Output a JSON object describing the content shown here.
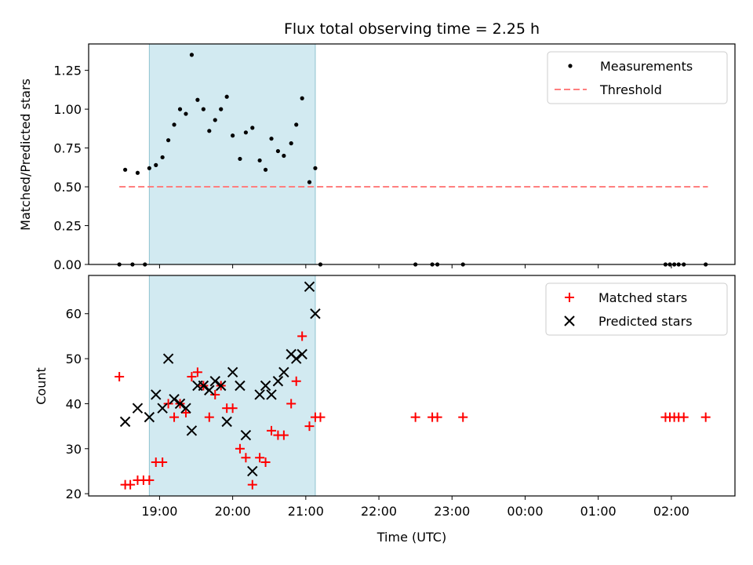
{
  "chart_data": {
    "type": "scatter",
    "title": "Flux total observing time = 2.25 h",
    "xlabel": "Time (UTC)",
    "x_unit": "hours since 19:00 UTC",
    "xlim": [
      -0.97,
      7.87
    ],
    "x_ticks": [
      0,
      1,
      2,
      3,
      4,
      5,
      6,
      7
    ],
    "x_tick_labels": [
      "19:00",
      "20:00",
      "21:00",
      "22:00",
      "23:00",
      "00:00",
      "01:00",
      "02:00"
    ],
    "observing_window": [
      -0.14,
      2.13
    ],
    "top_panel": {
      "ylabel": "Matched/Predicted stars",
      "ylim": [
        0,
        1.42
      ],
      "y_ticks": [
        0,
        0.25,
        0.5,
        0.75,
        1.0,
        1.25
      ],
      "y_tick_labels": [
        "0.00",
        "0.25",
        "0.50",
        "0.75",
        "1.00",
        "1.25"
      ],
      "threshold": {
        "name": "Threshold",
        "value": 0.5,
        "x_range": [
          -0.55,
          7.5
        ],
        "color": "#ff7f7f"
      },
      "measurements": {
        "name": "Measurements",
        "color": "#000000",
        "points": [
          [
            -0.55,
            0
          ],
          [
            -0.47,
            0.61
          ],
          [
            -0.37,
            0
          ],
          [
            -0.3,
            0.59
          ],
          [
            -0.2,
            0
          ],
          [
            -0.14,
            0.62
          ],
          [
            -0.05,
            0.64
          ],
          [
            0.04,
            0.69
          ],
          [
            0.12,
            0.8
          ],
          [
            0.2,
            0.9
          ],
          [
            0.28,
            1.0
          ],
          [
            0.36,
            0.97
          ],
          [
            0.44,
            1.35
          ],
          [
            0.52,
            1.06
          ],
          [
            0.6,
            1.0
          ],
          [
            0.68,
            0.86
          ],
          [
            0.76,
            0.93
          ],
          [
            0.84,
            1.0
          ],
          [
            0.92,
            1.08
          ],
          [
            1.0,
            0.83
          ],
          [
            1.1,
            0.68
          ],
          [
            1.18,
            0.85
          ],
          [
            1.27,
            0.88
          ],
          [
            1.37,
            0.67
          ],
          [
            1.45,
            0.61
          ],
          [
            1.53,
            0.81
          ],
          [
            1.62,
            0.73
          ],
          [
            1.7,
            0.7
          ],
          [
            1.8,
            0.78
          ],
          [
            1.87,
            0.9
          ],
          [
            1.95,
            1.07
          ],
          [
            2.05,
            0.53
          ],
          [
            2.13,
            0.62
          ],
          [
            2.2,
            0
          ],
          [
            3.5,
            0
          ],
          [
            3.73,
            0
          ],
          [
            3.8,
            0
          ],
          [
            4.15,
            0
          ],
          [
            6.92,
            0
          ],
          [
            6.98,
            0
          ],
          [
            7.04,
            0
          ],
          [
            7.1,
            0
          ],
          [
            7.17,
            0
          ],
          [
            7.47,
            0
          ]
        ]
      },
      "legend": [
        "Measurements",
        "Threshold"
      ],
      "legend_position": "upper right"
    },
    "bottom_panel": {
      "ylabel": "Count",
      "ylim": [
        19.5,
        68.5
      ],
      "y_ticks": [
        20,
        30,
        40,
        50,
        60
      ],
      "y_tick_labels": [
        "20",
        "30",
        "40",
        "50",
        "60"
      ],
      "series": [
        {
          "name": "Matched stars",
          "marker": "plus",
          "color": "#ff0000",
          "points": [
            [
              -0.55,
              46
            ],
            [
              -0.47,
              22
            ],
            [
              -0.4,
              22
            ],
            [
              -0.3,
              23
            ],
            [
              -0.22,
              23
            ],
            [
              -0.14,
              23
            ],
            [
              -0.05,
              27
            ],
            [
              0.04,
              27
            ],
            [
              0.12,
              40
            ],
            [
              0.2,
              37
            ],
            [
              0.28,
              40
            ],
            [
              0.36,
              38
            ],
            [
              0.44,
              46
            ],
            [
              0.52,
              47
            ],
            [
              0.6,
              44
            ],
            [
              0.68,
              37
            ],
            [
              0.76,
              42
            ],
            [
              0.84,
              44
            ],
            [
              0.92,
              39
            ],
            [
              1.0,
              39
            ],
            [
              1.1,
              30
            ],
            [
              1.18,
              28
            ],
            [
              1.27,
              22
            ],
            [
              1.37,
              28
            ],
            [
              1.45,
              27
            ],
            [
              1.53,
              34
            ],
            [
              1.62,
              33
            ],
            [
              1.7,
              33
            ],
            [
              1.8,
              40
            ],
            [
              1.87,
              45
            ],
            [
              1.95,
              55
            ],
            [
              2.05,
              35
            ],
            [
              2.13,
              37
            ],
            [
              2.2,
              37
            ],
            [
              3.5,
              37
            ],
            [
              3.73,
              37
            ],
            [
              3.8,
              37
            ],
            [
              4.15,
              37
            ],
            [
              6.92,
              37
            ],
            [
              6.98,
              37
            ],
            [
              7.04,
              37
            ],
            [
              7.1,
              37
            ],
            [
              7.17,
              37
            ],
            [
              7.47,
              37
            ]
          ]
        },
        {
          "name": "Predicted stars",
          "marker": "x",
          "color": "#000000",
          "points": [
            [
              -0.47,
              36
            ],
            [
              -0.3,
              39
            ],
            [
              -0.14,
              37
            ],
            [
              -0.05,
              42
            ],
            [
              0.04,
              39
            ],
            [
              0.12,
              50
            ],
            [
              0.2,
              41
            ],
            [
              0.28,
              40
            ],
            [
              0.36,
              39
            ],
            [
              0.44,
              34
            ],
            [
              0.52,
              44
            ],
            [
              0.6,
              44
            ],
            [
              0.68,
              43
            ],
            [
              0.76,
              45
            ],
            [
              0.84,
              44
            ],
            [
              0.92,
              36
            ],
            [
              1.0,
              47
            ],
            [
              1.1,
              44
            ],
            [
              1.18,
              33
            ],
            [
              1.27,
              25
            ],
            [
              1.37,
              42
            ],
            [
              1.45,
              44
            ],
            [
              1.53,
              42
            ],
            [
              1.62,
              45
            ],
            [
              1.7,
              47
            ],
            [
              1.8,
              51
            ],
            [
              1.87,
              50
            ],
            [
              1.95,
              51
            ],
            [
              2.05,
              66
            ],
            [
              2.13,
              60
            ]
          ]
        }
      ],
      "legend_position": "upper right"
    },
    "colors": {
      "window_fill": "#add8e6",
      "axis": "#000000"
    }
  }
}
